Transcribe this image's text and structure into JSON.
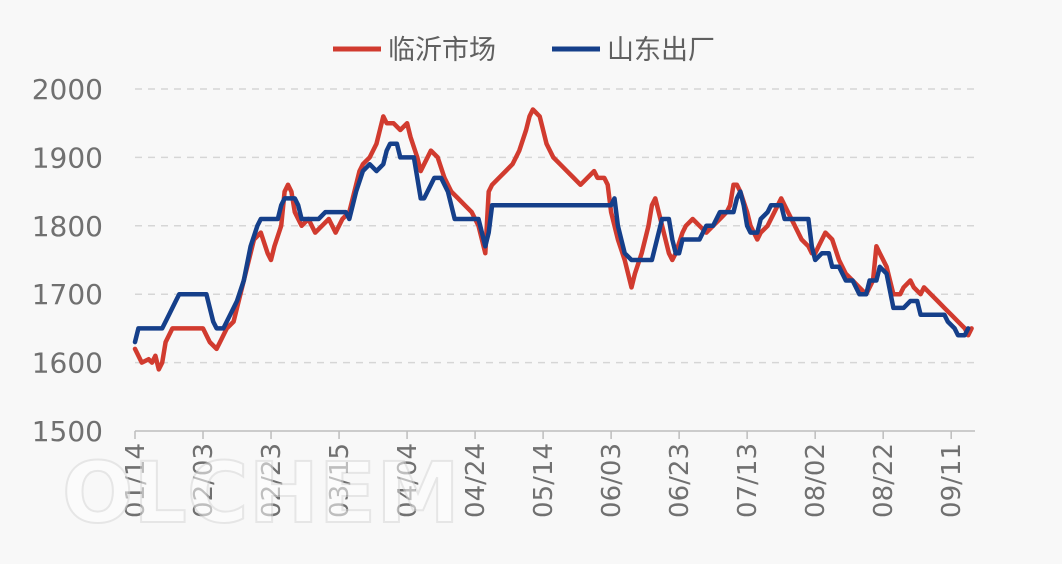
{
  "chart_data": {
    "type": "line",
    "title": "",
    "xlabel": "",
    "ylabel": "",
    "ylim": [
      1500,
      2000
    ],
    "yticks": [
      1500,
      1600,
      1700,
      1800,
      1900,
      2000
    ],
    "grid": true,
    "legend_position": "top",
    "x_tick_labels": [
      "01/14",
      "02/03",
      "02/23",
      "03/15",
      "04/04",
      "04/24",
      "05/14",
      "06/03",
      "06/23",
      "07/13",
      "08/02",
      "08/22",
      "09/11"
    ],
    "x_tick_days": [
      0,
      20,
      40,
      60,
      80,
      100,
      120,
      140,
      160,
      180,
      200,
      220,
      240
    ],
    "x_range_days": [
      0,
      247
    ],
    "watermark": "OLCHEM",
    "series": [
      {
        "name": "临沂市场",
        "color": "#d13b2f",
        "points": [
          [
            0,
            1620
          ],
          [
            2,
            1600
          ],
          [
            4,
            1605
          ],
          [
            5,
            1600
          ],
          [
            6,
            1610
          ],
          [
            7,
            1590
          ],
          [
            8,
            1600
          ],
          [
            9,
            1630
          ],
          [
            11,
            1650
          ],
          [
            20,
            1650
          ],
          [
            22,
            1630
          ],
          [
            24,
            1620
          ],
          [
            25,
            1630
          ],
          [
            27,
            1650
          ],
          [
            29,
            1660
          ],
          [
            31,
            1700
          ],
          [
            33,
            1740
          ],
          [
            35,
            1780
          ],
          [
            37,
            1790
          ],
          [
            39,
            1760
          ],
          [
            40,
            1750
          ],
          [
            41,
            1770
          ],
          [
            43,
            1800
          ],
          [
            44,
            1850
          ],
          [
            45,
            1860
          ],
          [
            46,
            1850
          ],
          [
            47,
            1820
          ],
          [
            49,
            1800
          ],
          [
            51,
            1810
          ],
          [
            53,
            1790
          ],
          [
            55,
            1800
          ],
          [
            57,
            1810
          ],
          [
            58,
            1800
          ],
          [
            59,
            1790
          ],
          [
            61,
            1810
          ],
          [
            63,
            1820
          ],
          [
            64,
            1840
          ],
          [
            65,
            1860
          ],
          [
            66,
            1880
          ],
          [
            67,
            1890
          ],
          [
            69,
            1900
          ],
          [
            71,
            1920
          ],
          [
            72,
            1940
          ],
          [
            73,
            1960
          ],
          [
            74,
            1950
          ],
          [
            76,
            1950
          ],
          [
            78,
            1940
          ],
          [
            80,
            1950
          ],
          [
            81,
            1930
          ],
          [
            83,
            1900
          ],
          [
            84,
            1880
          ],
          [
            85,
            1890
          ],
          [
            87,
            1910
          ],
          [
            89,
            1900
          ],
          [
            91,
            1870
          ],
          [
            93,
            1850
          ],
          [
            95,
            1840
          ],
          [
            97,
            1830
          ],
          [
            99,
            1820
          ],
          [
            101,
            1800
          ],
          [
            102,
            1780
          ],
          [
            103,
            1760
          ],
          [
            104,
            1850
          ],
          [
            105,
            1860
          ],
          [
            107,
            1870
          ],
          [
            109,
            1880
          ],
          [
            111,
            1890
          ],
          [
            113,
            1910
          ],
          [
            115,
            1940
          ],
          [
            116,
            1960
          ],
          [
            117,
            1970
          ],
          [
            119,
            1960
          ],
          [
            120,
            1940
          ],
          [
            121,
            1920
          ],
          [
            123,
            1900
          ],
          [
            125,
            1890
          ],
          [
            127,
            1880
          ],
          [
            129,
            1870
          ],
          [
            131,
            1860
          ],
          [
            133,
            1870
          ],
          [
            135,
            1880
          ],
          [
            136,
            1870
          ],
          [
            138,
            1870
          ],
          [
            139,
            1860
          ],
          [
            140,
            1820
          ],
          [
            142,
            1780
          ],
          [
            144,
            1750
          ],
          [
            145,
            1730
          ],
          [
            146,
            1710
          ],
          [
            147,
            1730
          ],
          [
            149,
            1760
          ],
          [
            151,
            1800
          ],
          [
            152,
            1830
          ],
          [
            153,
            1840
          ],
          [
            155,
            1800
          ],
          [
            157,
            1760
          ],
          [
            158,
            1750
          ],
          [
            159,
            1760
          ],
          [
            161,
            1790
          ],
          [
            162,
            1800
          ],
          [
            164,
            1810
          ],
          [
            166,
            1800
          ],
          [
            168,
            1790
          ],
          [
            170,
            1800
          ],
          [
            172,
            1810
          ],
          [
            174,
            1820
          ],
          [
            175,
            1830
          ],
          [
            176,
            1860
          ],
          [
            177,
            1860
          ],
          [
            178,
            1850
          ],
          [
            180,
            1820
          ],
          [
            181,
            1800
          ],
          [
            183,
            1780
          ],
          [
            184,
            1790
          ],
          [
            186,
            1800
          ],
          [
            188,
            1820
          ],
          [
            189,
            1830
          ],
          [
            190,
            1840
          ],
          [
            192,
            1820
          ],
          [
            194,
            1800
          ],
          [
            196,
            1780
          ],
          [
            198,
            1770
          ],
          [
            199,
            1760
          ],
          [
            200,
            1760
          ],
          [
            201,
            1770
          ],
          [
            203,
            1790
          ],
          [
            205,
            1780
          ],
          [
            207,
            1750
          ],
          [
            209,
            1730
          ],
          [
            211,
            1720
          ],
          [
            213,
            1710
          ],
          [
            215,
            1700
          ],
          [
            217,
            1720
          ],
          [
            218,
            1770
          ],
          [
            219,
            1760
          ],
          [
            221,
            1740
          ],
          [
            222,
            1720
          ],
          [
            223,
            1700
          ],
          [
            225,
            1700
          ],
          [
            226,
            1710
          ],
          [
            228,
            1720
          ],
          [
            229,
            1710
          ],
          [
            231,
            1700
          ],
          [
            232,
            1710
          ],
          [
            234,
            1700
          ],
          [
            236,
            1690
          ],
          [
            238,
            1680
          ],
          [
            240,
            1670
          ],
          [
            242,
            1660
          ],
          [
            244,
            1650
          ],
          [
            245,
            1640
          ],
          [
            246,
            1650
          ]
        ]
      },
      {
        "name": "山东出厂",
        "color": "#153f8a",
        "points": [
          [
            0,
            1630
          ],
          [
            1,
            1650
          ],
          [
            8,
            1650
          ],
          [
            10,
            1670
          ],
          [
            12,
            1690
          ],
          [
            13,
            1700
          ],
          [
            21,
            1700
          ],
          [
            22,
            1680
          ],
          [
            23,
            1660
          ],
          [
            24,
            1650
          ],
          [
            26,
            1650
          ],
          [
            28,
            1670
          ],
          [
            30,
            1690
          ],
          [
            32,
            1720
          ],
          [
            34,
            1770
          ],
          [
            36,
            1800
          ],
          [
            37,
            1810
          ],
          [
            42,
            1810
          ],
          [
            43,
            1830
          ],
          [
            44,
            1840
          ],
          [
            47,
            1840
          ],
          [
            48,
            1830
          ],
          [
            49,
            1810
          ],
          [
            54,
            1810
          ],
          [
            56,
            1820
          ],
          [
            62,
            1820
          ],
          [
            63,
            1810
          ],
          [
            64,
            1830
          ],
          [
            65,
            1850
          ],
          [
            67,
            1880
          ],
          [
            69,
            1890
          ],
          [
            71,
            1880
          ],
          [
            73,
            1890
          ],
          [
            74,
            1910
          ],
          [
            75,
            1920
          ],
          [
            77,
            1920
          ],
          [
            78,
            1900
          ],
          [
            82,
            1900
          ],
          [
            83,
            1870
          ],
          [
            84,
            1840
          ],
          [
            85,
            1840
          ],
          [
            87,
            1860
          ],
          [
            88,
            1870
          ],
          [
            90,
            1870
          ],
          [
            92,
            1850
          ],
          [
            93,
            1830
          ],
          [
            94,
            1810
          ],
          [
            101,
            1810
          ],
          [
            102,
            1790
          ],
          [
            103,
            1770
          ],
          [
            104,
            1790
          ],
          [
            105,
            1830
          ],
          [
            140,
            1830
          ],
          [
            141,
            1840
          ],
          [
            142,
            1800
          ],
          [
            143,
            1780
          ],
          [
            144,
            1760
          ],
          [
            146,
            1750
          ],
          [
            152,
            1750
          ],
          [
            154,
            1790
          ],
          [
            155,
            1810
          ],
          [
            157,
            1810
          ],
          [
            158,
            1780
          ],
          [
            159,
            1760
          ],
          [
            160,
            1760
          ],
          [
            161,
            1780
          ],
          [
            166,
            1780
          ],
          [
            168,
            1800
          ],
          [
            170,
            1800
          ],
          [
            172,
            1820
          ],
          [
            176,
            1820
          ],
          [
            177,
            1840
          ],
          [
            178,
            1850
          ],
          [
            179,
            1830
          ],
          [
            180,
            1800
          ],
          [
            181,
            1790
          ],
          [
            183,
            1790
          ],
          [
            184,
            1810
          ],
          [
            186,
            1820
          ],
          [
            187,
            1830
          ],
          [
            190,
            1830
          ],
          [
            191,
            1810
          ],
          [
            198,
            1810
          ],
          [
            199,
            1770
          ],
          [
            200,
            1750
          ],
          [
            202,
            1760
          ],
          [
            204,
            1760
          ],
          [
            205,
            1740
          ],
          [
            207,
            1740
          ],
          [
            209,
            1720
          ],
          [
            211,
            1720
          ],
          [
            213,
            1700
          ],
          [
            215,
            1700
          ],
          [
            216,
            1720
          ],
          [
            218,
            1720
          ],
          [
            219,
            1740
          ],
          [
            221,
            1730
          ],
          [
            223,
            1680
          ],
          [
            226,
            1680
          ],
          [
            228,
            1690
          ],
          [
            230,
            1690
          ],
          [
            231,
            1670
          ],
          [
            238,
            1670
          ],
          [
            239,
            1660
          ],
          [
            241,
            1650
          ],
          [
            242,
            1640
          ],
          [
            244,
            1640
          ],
          [
            245,
            1650
          ]
        ]
      }
    ]
  }
}
